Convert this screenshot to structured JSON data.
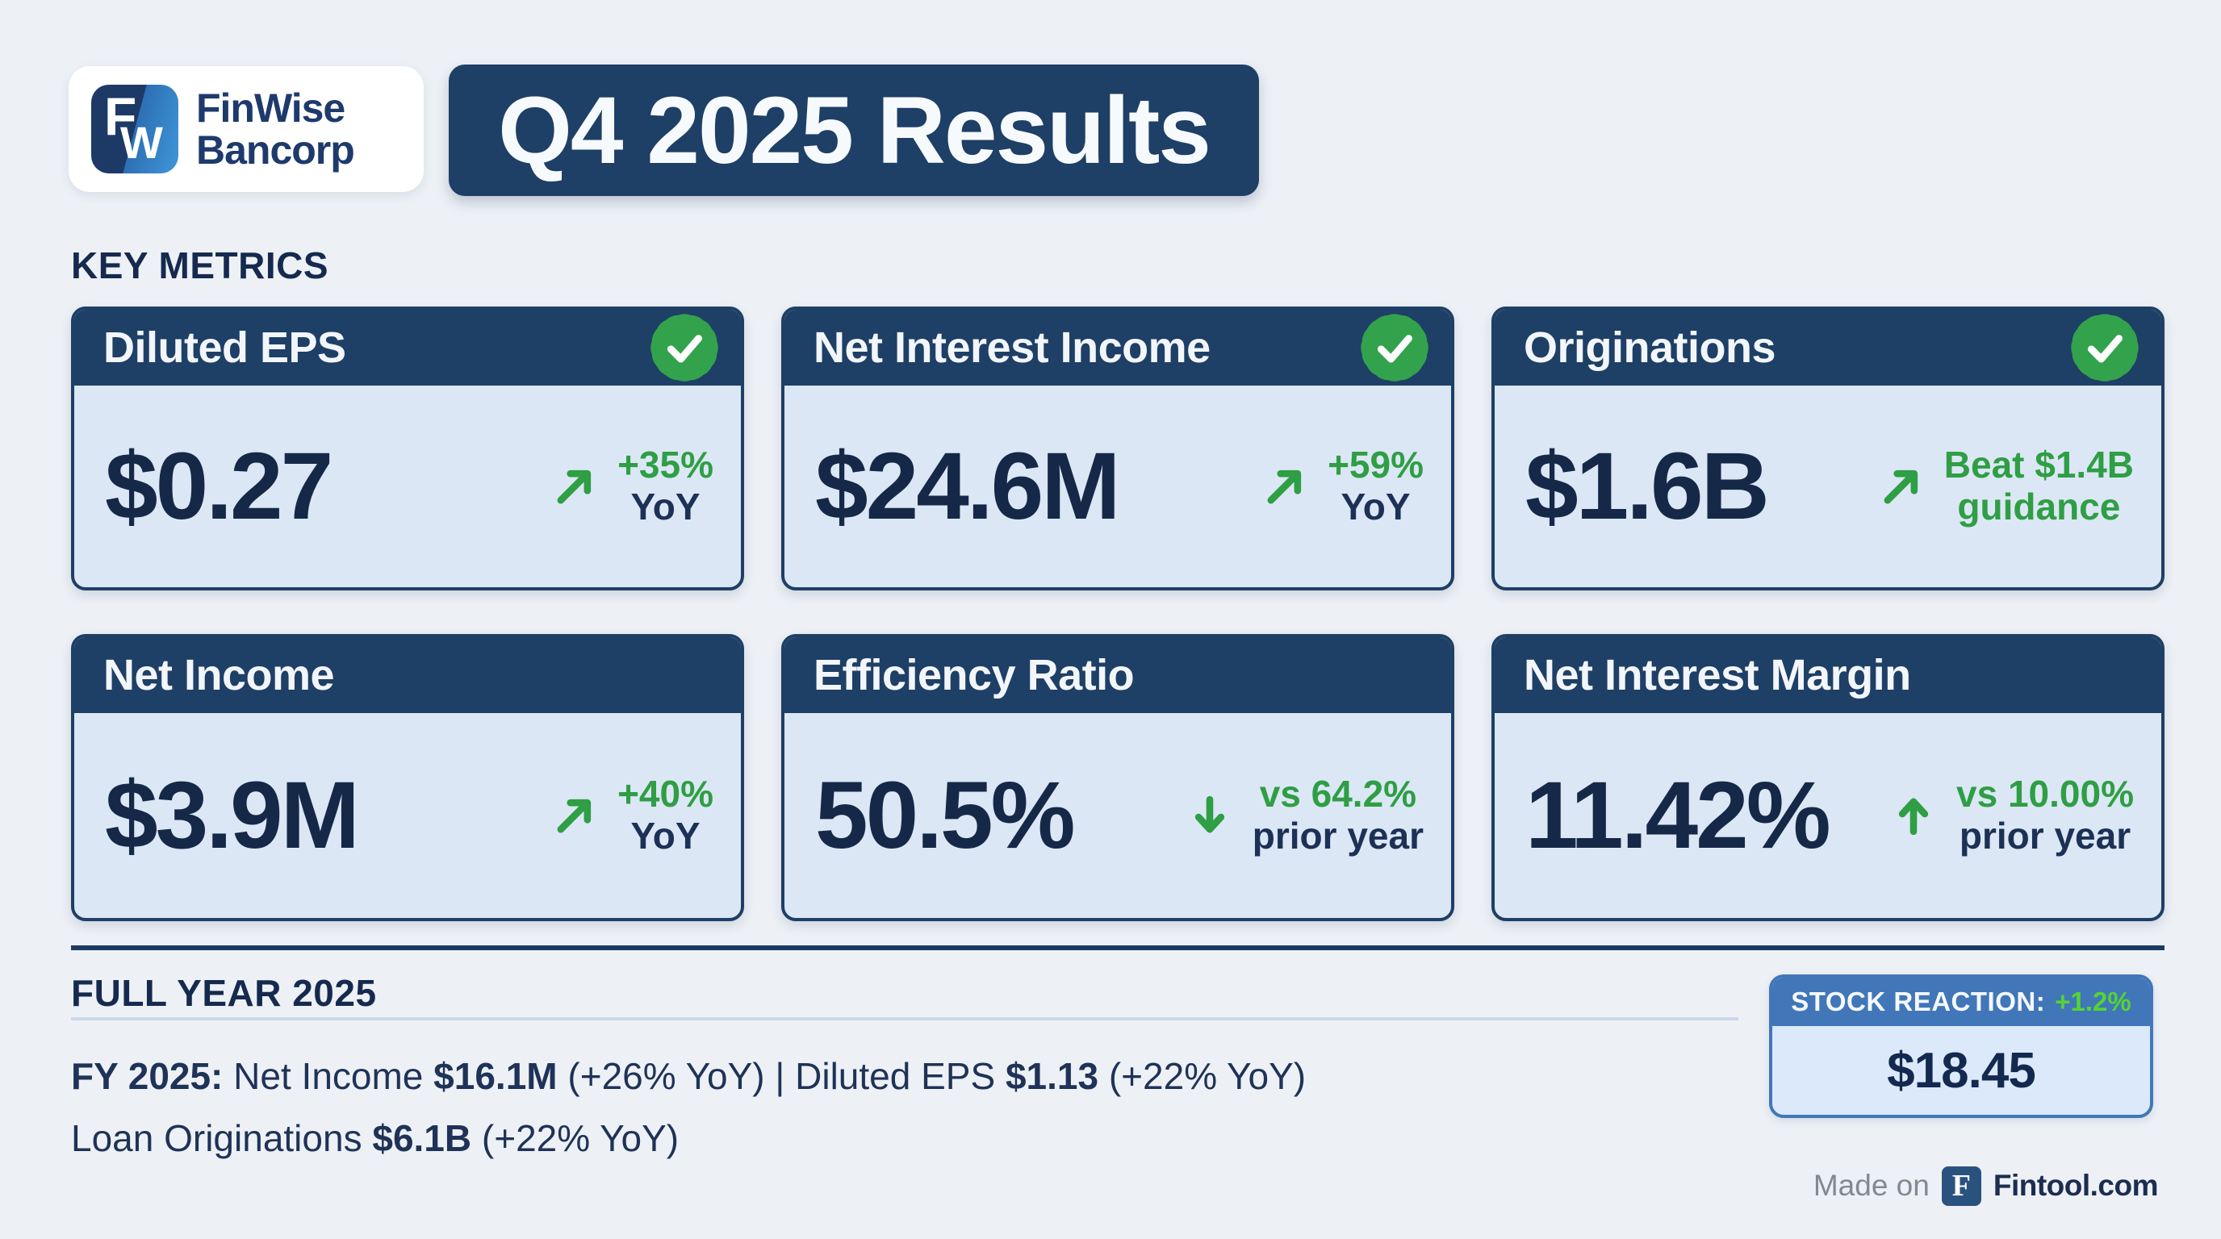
{
  "header": {
    "logo": {
      "icon_letter_f": "F",
      "icon_letter_w": "W",
      "brand_line1": "FinWise",
      "brand_line2": "Bancorp"
    },
    "title": "Q4 2025 Results"
  },
  "key_metrics": {
    "heading": "KEY METRICS"
  },
  "cards": [
    {
      "title": "Diluted EPS",
      "badge": true,
      "value": "$0.27",
      "arrow": "up-right",
      "line1": "+35%",
      "line2": "YoY",
      "line2_style": "navy"
    },
    {
      "title": "Net Interest Income",
      "badge": true,
      "value": "$24.6M",
      "arrow": "up-right",
      "line1": "+59%",
      "line2": "YoY",
      "line2_style": "navy"
    },
    {
      "title": "Originations",
      "badge": true,
      "value": "$1.6B",
      "arrow": "up-right",
      "line1": "Beat $1.4B",
      "line2": "guidance",
      "line2_style": "green"
    },
    {
      "title": "Net Income",
      "badge": false,
      "value": "$3.9M",
      "arrow": "up-right",
      "line1": "+40%",
      "line2": "YoY",
      "line2_style": "navy"
    },
    {
      "title": "Efficiency Ratio",
      "badge": false,
      "value": "50.5%",
      "arrow": "down",
      "line1": "vs 64.2%",
      "line2": "prior year",
      "line2_style": "navy"
    },
    {
      "title": "Net Interest Margin",
      "badge": false,
      "value": "11.42%",
      "arrow": "up",
      "line1": "vs 10.00%",
      "line2": "prior year",
      "line2_style": "navy"
    }
  ],
  "full_year": {
    "heading": "FULL YEAR 2025",
    "b1": "FY 2025:",
    "t1": " Net Income ",
    "b2": "$16.1M",
    "t2": " (+26% YoY) | Diluted EPS ",
    "b3": "$1.13",
    "t3": " (+22% YoY)",
    "t4": "Loan Originations ",
    "b4": "$6.1B",
    "t5": " (+22% YoY)"
  },
  "stock_reaction": {
    "label": "STOCK REACTION:",
    "change": "+1.2%",
    "price": "$18.45"
  },
  "footer": {
    "made_on": "Made on",
    "logo_letter": "F",
    "site": "Fintool.com"
  },
  "colors": {
    "page_bg": "#edf1f6",
    "navy": "#1e3f66",
    "value_navy": "#152847",
    "text_navy": "#1f3257",
    "green": "#2f9e44",
    "badge_green": "#33a24c",
    "lime": "#55d335",
    "stock_blue": "#4177b8",
    "card_body": "#dbe7f5",
    "light_rule": "#cbd7e9",
    "muted_gray": "#82898f"
  }
}
